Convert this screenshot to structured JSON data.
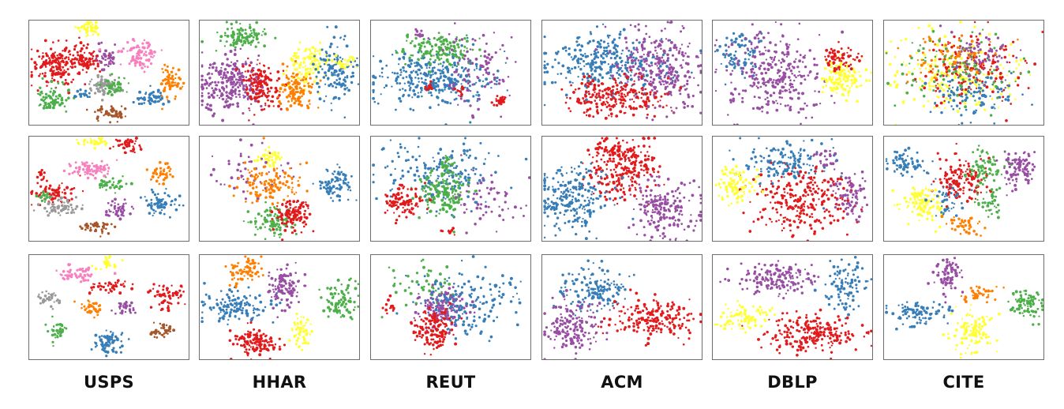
{
  "colors": {
    "red": "#e31a1c",
    "blue": "#377eb8",
    "green": "#4daf4a",
    "purple": "#984ea3",
    "orange": "#ff7f00",
    "yellow": "#ffff33",
    "pink": "#f781bf",
    "gray": "#999999",
    "brown": "#a65628"
  },
  "labels": [
    "USPS",
    "HHAR",
    "REUT",
    "ACM",
    "DBLP",
    "CITE"
  ],
  "chart_data": [
    {
      "type": "scatter",
      "row": 1,
      "dataset": "USPS",
      "clusters": [
        {
          "color": "yellow",
          "cx": 0.37,
          "cy": 0.08,
          "rx": 0.08,
          "ry": 0.07,
          "n": 45
        },
        {
          "color": "red",
          "cx": 0.17,
          "cy": 0.42,
          "rx": 0.15,
          "ry": 0.19,
          "n": 170
        },
        {
          "color": "red",
          "cx": 0.33,
          "cy": 0.36,
          "rx": 0.1,
          "ry": 0.15,
          "n": 80
        },
        {
          "color": "purple",
          "cx": 0.47,
          "cy": 0.36,
          "rx": 0.07,
          "ry": 0.1,
          "n": 45
        },
        {
          "color": "pink",
          "cx": 0.68,
          "cy": 0.33,
          "rx": 0.12,
          "ry": 0.13,
          "n": 90
        },
        {
          "color": "gray",
          "cx": 0.44,
          "cy": 0.61,
          "rx": 0.11,
          "ry": 0.09,
          "n": 70
        },
        {
          "color": "green",
          "cx": 0.14,
          "cy": 0.75,
          "rx": 0.1,
          "ry": 0.12,
          "n": 80
        },
        {
          "color": "green",
          "cx": 0.53,
          "cy": 0.62,
          "rx": 0.1,
          "ry": 0.08,
          "n": 45
        },
        {
          "color": "blue",
          "cx": 0.33,
          "cy": 0.7,
          "rx": 0.05,
          "ry": 0.05,
          "n": 20
        },
        {
          "color": "blue",
          "cx": 0.76,
          "cy": 0.73,
          "rx": 0.1,
          "ry": 0.07,
          "n": 55
        },
        {
          "color": "orange",
          "cx": 0.88,
          "cy": 0.59,
          "rx": 0.07,
          "ry": 0.14,
          "n": 65
        },
        {
          "color": "brown",
          "cx": 0.5,
          "cy": 0.87,
          "rx": 0.09,
          "ry": 0.07,
          "n": 50
        }
      ]
    },
    {
      "type": "scatter",
      "row": 1,
      "dataset": "HHAR",
      "clusters": [
        {
          "color": "green",
          "cx": 0.27,
          "cy": 0.15,
          "rx": 0.16,
          "ry": 0.11,
          "n": 110
        },
        {
          "color": "purple",
          "cx": 0.2,
          "cy": 0.6,
          "rx": 0.2,
          "ry": 0.25,
          "n": 260
        },
        {
          "color": "red",
          "cx": 0.38,
          "cy": 0.6,
          "rx": 0.1,
          "ry": 0.24,
          "n": 150
        },
        {
          "color": "yellow",
          "cx": 0.68,
          "cy": 0.4,
          "rx": 0.12,
          "ry": 0.2,
          "n": 120
        },
        {
          "color": "orange",
          "cx": 0.6,
          "cy": 0.65,
          "rx": 0.11,
          "ry": 0.2,
          "n": 120
        },
        {
          "color": "blue",
          "cx": 0.84,
          "cy": 0.48,
          "rx": 0.12,
          "ry": 0.3,
          "n": 130
        },
        {
          "color": "yellow",
          "cx": 0.9,
          "cy": 0.4,
          "rx": 0.06,
          "ry": 0.08,
          "n": 30
        }
      ]
    },
    {
      "type": "scatter",
      "row": 1,
      "dataset": "REUT",
      "clusters": [
        {
          "color": "blue",
          "cx": 0.4,
          "cy": 0.55,
          "rx": 0.36,
          "ry": 0.25,
          "n": 330
        },
        {
          "color": "green",
          "cx": 0.42,
          "cy": 0.28,
          "rx": 0.22,
          "ry": 0.16,
          "n": 150
        },
        {
          "color": "purple",
          "cx": 0.67,
          "cy": 0.44,
          "rx": 0.22,
          "ry": 0.35,
          "n": 90
        },
        {
          "color": "red",
          "cx": 0.8,
          "cy": 0.76,
          "rx": 0.05,
          "ry": 0.05,
          "n": 28
        },
        {
          "color": "red",
          "cx": 0.37,
          "cy": 0.62,
          "rx": 0.04,
          "ry": 0.05,
          "n": 12
        },
        {
          "color": "red",
          "cx": 0.55,
          "cy": 0.67,
          "rx": 0.04,
          "ry": 0.05,
          "n": 10
        },
        {
          "color": "purple",
          "cx": 0.3,
          "cy": 0.12,
          "rx": 0.05,
          "ry": 0.05,
          "n": 10
        }
      ]
    },
    {
      "type": "scatter",
      "row": 1,
      "dataset": "ACM",
      "clusters": [
        {
          "color": "blue",
          "cx": 0.4,
          "cy": 0.4,
          "rx": 0.35,
          "ry": 0.25,
          "n": 300
        },
        {
          "color": "purple",
          "cx": 0.72,
          "cy": 0.45,
          "rx": 0.28,
          "ry": 0.38,
          "n": 300
        },
        {
          "color": "red",
          "cx": 0.45,
          "cy": 0.72,
          "rx": 0.28,
          "ry": 0.2,
          "n": 240
        }
      ]
    },
    {
      "type": "scatter",
      "row": 1,
      "dataset": "DBLP",
      "clusters": [
        {
          "color": "blue",
          "cx": 0.16,
          "cy": 0.3,
          "rx": 0.13,
          "ry": 0.2,
          "n": 80
        },
        {
          "color": "purple",
          "cx": 0.38,
          "cy": 0.52,
          "rx": 0.3,
          "ry": 0.38,
          "n": 300
        },
        {
          "color": "yellow",
          "cx": 0.8,
          "cy": 0.55,
          "rx": 0.14,
          "ry": 0.17,
          "n": 130
        },
        {
          "color": "red",
          "cx": 0.78,
          "cy": 0.35,
          "rx": 0.1,
          "ry": 0.12,
          "n": 60
        }
      ]
    },
    {
      "type": "scatter",
      "row": 1,
      "dataset": "CITE",
      "clusters": [
        {
          "color": "yellow",
          "cx": 0.45,
          "cy": 0.5,
          "rx": 0.38,
          "ry": 0.35,
          "n": 200
        },
        {
          "color": "red",
          "cx": 0.55,
          "cy": 0.45,
          "rx": 0.3,
          "ry": 0.3,
          "n": 160
        },
        {
          "color": "blue",
          "cx": 0.55,
          "cy": 0.7,
          "rx": 0.3,
          "ry": 0.22,
          "n": 110
        },
        {
          "color": "green",
          "cx": 0.45,
          "cy": 0.45,
          "rx": 0.38,
          "ry": 0.32,
          "n": 110
        },
        {
          "color": "purple",
          "cx": 0.6,
          "cy": 0.3,
          "rx": 0.22,
          "ry": 0.18,
          "n": 70
        },
        {
          "color": "orange",
          "cx": 0.4,
          "cy": 0.35,
          "rx": 0.3,
          "ry": 0.25,
          "n": 70
        }
      ]
    },
    {
      "type": "scatter",
      "row": 2,
      "dataset": "USPS",
      "clusters": [
        {
          "color": "yellow",
          "cx": 0.4,
          "cy": 0.06,
          "rx": 0.09,
          "ry": 0.05,
          "n": 35
        },
        {
          "color": "red",
          "cx": 0.6,
          "cy": 0.08,
          "rx": 0.09,
          "ry": 0.07,
          "n": 40
        },
        {
          "color": "pink",
          "cx": 0.38,
          "cy": 0.3,
          "rx": 0.14,
          "ry": 0.08,
          "n": 75
        },
        {
          "color": "red",
          "cx": 0.15,
          "cy": 0.52,
          "rx": 0.13,
          "ry": 0.1,
          "n": 70
        },
        {
          "color": "red",
          "cx": 0.07,
          "cy": 0.38,
          "rx": 0.04,
          "ry": 0.05,
          "n": 15
        },
        {
          "color": "green",
          "cx": 0.5,
          "cy": 0.45,
          "rx": 0.11,
          "ry": 0.06,
          "n": 45
        },
        {
          "color": "orange",
          "cx": 0.83,
          "cy": 0.33,
          "rx": 0.07,
          "ry": 0.09,
          "n": 40
        },
        {
          "color": "blue",
          "cx": 0.82,
          "cy": 0.63,
          "rx": 0.1,
          "ry": 0.12,
          "n": 70
        },
        {
          "color": "gray",
          "cx": 0.2,
          "cy": 0.66,
          "rx": 0.14,
          "ry": 0.1,
          "n": 70
        },
        {
          "color": "purple",
          "cx": 0.55,
          "cy": 0.68,
          "rx": 0.09,
          "ry": 0.08,
          "n": 45
        },
        {
          "color": "brown",
          "cx": 0.42,
          "cy": 0.87,
          "rx": 0.08,
          "ry": 0.06,
          "n": 40
        },
        {
          "color": "green",
          "cx": 0.1,
          "cy": 0.57,
          "rx": 0.05,
          "ry": 0.05,
          "n": 15
        }
      ]
    },
    {
      "type": "scatter",
      "row": 2,
      "dataset": "HHAR",
      "clusters": [
        {
          "color": "yellow",
          "cx": 0.43,
          "cy": 0.2,
          "rx": 0.08,
          "ry": 0.09,
          "n": 45
        },
        {
          "color": "purple",
          "cx": 0.3,
          "cy": 0.35,
          "rx": 0.25,
          "ry": 0.25,
          "n": 50
        },
        {
          "color": "orange",
          "cx": 0.45,
          "cy": 0.45,
          "rx": 0.18,
          "ry": 0.2,
          "n": 120
        },
        {
          "color": "blue",
          "cx": 0.85,
          "cy": 0.45,
          "rx": 0.1,
          "ry": 0.15,
          "n": 80
        },
        {
          "color": "green",
          "cx": 0.45,
          "cy": 0.8,
          "rx": 0.15,
          "ry": 0.12,
          "n": 90
        },
        {
          "color": "red",
          "cx": 0.58,
          "cy": 0.74,
          "rx": 0.1,
          "ry": 0.15,
          "n": 110
        }
      ]
    },
    {
      "type": "scatter",
      "row": 2,
      "dataset": "REUT",
      "clusters": [
        {
          "color": "blue",
          "cx": 0.45,
          "cy": 0.35,
          "rx": 0.4,
          "ry": 0.3,
          "n": 180
        },
        {
          "color": "green",
          "cx": 0.45,
          "cy": 0.52,
          "rx": 0.15,
          "ry": 0.2,
          "n": 170
        },
        {
          "color": "red",
          "cx": 0.2,
          "cy": 0.63,
          "rx": 0.12,
          "ry": 0.15,
          "n": 100
        },
        {
          "color": "red",
          "cx": 0.48,
          "cy": 0.9,
          "rx": 0.04,
          "ry": 0.04,
          "n": 10
        },
        {
          "color": "purple",
          "cx": 0.7,
          "cy": 0.6,
          "rx": 0.25,
          "ry": 0.25,
          "n": 60
        },
        {
          "color": "green",
          "cx": 0.48,
          "cy": 0.25,
          "rx": 0.05,
          "ry": 0.07,
          "n": 20
        }
      ]
    },
    {
      "type": "scatter",
      "row": 2,
      "dataset": "ACM",
      "clusters": [
        {
          "color": "red",
          "cx": 0.5,
          "cy": 0.3,
          "rx": 0.22,
          "ry": 0.28,
          "n": 250
        },
        {
          "color": "blue",
          "cx": 0.2,
          "cy": 0.58,
          "rx": 0.22,
          "ry": 0.33,
          "n": 240
        },
        {
          "color": "purple",
          "cx": 0.75,
          "cy": 0.68,
          "rx": 0.2,
          "ry": 0.25,
          "n": 200
        },
        {
          "color": "red",
          "cx": 0.42,
          "cy": 0.12,
          "rx": 0.1,
          "ry": 0.05,
          "n": 30
        }
      ]
    },
    {
      "type": "scatter",
      "row": 2,
      "dataset": "DBLP",
      "clusters": [
        {
          "color": "blue",
          "cx": 0.45,
          "cy": 0.25,
          "rx": 0.25,
          "ry": 0.2,
          "n": 150
        },
        {
          "color": "red",
          "cx": 0.55,
          "cy": 0.6,
          "rx": 0.28,
          "ry": 0.3,
          "n": 260
        },
        {
          "color": "yellow",
          "cx": 0.15,
          "cy": 0.45,
          "rx": 0.12,
          "ry": 0.17,
          "n": 90
        },
        {
          "color": "purple",
          "cx": 0.85,
          "cy": 0.55,
          "rx": 0.1,
          "ry": 0.2,
          "n": 80
        },
        {
          "color": "purple",
          "cx": 0.7,
          "cy": 0.2,
          "rx": 0.08,
          "ry": 0.1,
          "n": 25
        }
      ]
    },
    {
      "type": "scatter",
      "row": 2,
      "dataset": "CITE",
      "clusters": [
        {
          "color": "blue",
          "cx": 0.13,
          "cy": 0.25,
          "rx": 0.12,
          "ry": 0.12,
          "n": 70
        },
        {
          "color": "red",
          "cx": 0.48,
          "cy": 0.4,
          "rx": 0.18,
          "ry": 0.2,
          "n": 140
        },
        {
          "color": "green",
          "cx": 0.62,
          "cy": 0.3,
          "rx": 0.12,
          "ry": 0.18,
          "n": 80
        },
        {
          "color": "purple",
          "cx": 0.83,
          "cy": 0.3,
          "rx": 0.12,
          "ry": 0.18,
          "n": 90
        },
        {
          "color": "yellow",
          "cx": 0.25,
          "cy": 0.63,
          "rx": 0.14,
          "ry": 0.18,
          "n": 110
        },
        {
          "color": "orange",
          "cx": 0.48,
          "cy": 0.82,
          "rx": 0.12,
          "ry": 0.08,
          "n": 40
        },
        {
          "color": "blue",
          "cx": 0.4,
          "cy": 0.6,
          "rx": 0.1,
          "ry": 0.15,
          "n": 40
        },
        {
          "color": "green",
          "cx": 0.65,
          "cy": 0.65,
          "rx": 0.1,
          "ry": 0.15,
          "n": 40
        }
      ]
    },
    {
      "type": "scatter",
      "row": 3,
      "dataset": "USPS",
      "clusters": [
        {
          "color": "yellow",
          "cx": 0.48,
          "cy": 0.08,
          "rx": 0.06,
          "ry": 0.06,
          "n": 25
        },
        {
          "color": "pink",
          "cx": 0.3,
          "cy": 0.17,
          "rx": 0.13,
          "ry": 0.08,
          "n": 55
        },
        {
          "color": "red",
          "cx": 0.5,
          "cy": 0.3,
          "rx": 0.12,
          "ry": 0.06,
          "n": 45
        },
        {
          "color": "red",
          "cx": 0.85,
          "cy": 0.38,
          "rx": 0.1,
          "ry": 0.12,
          "n": 60
        },
        {
          "color": "gray",
          "cx": 0.12,
          "cy": 0.42,
          "rx": 0.08,
          "ry": 0.08,
          "n": 35
        },
        {
          "color": "orange",
          "cx": 0.39,
          "cy": 0.5,
          "rx": 0.07,
          "ry": 0.07,
          "n": 35
        },
        {
          "color": "purple",
          "cx": 0.6,
          "cy": 0.5,
          "rx": 0.07,
          "ry": 0.07,
          "n": 35
        },
        {
          "color": "green",
          "cx": 0.18,
          "cy": 0.7,
          "rx": 0.06,
          "ry": 0.1,
          "n": 35
        },
        {
          "color": "blue",
          "cx": 0.49,
          "cy": 0.83,
          "rx": 0.1,
          "ry": 0.12,
          "n": 70
        },
        {
          "color": "brown",
          "cx": 0.83,
          "cy": 0.72,
          "rx": 0.08,
          "ry": 0.08,
          "n": 40
        }
      ]
    },
    {
      "type": "scatter",
      "row": 3,
      "dataset": "HHAR",
      "clusters": [
        {
          "color": "orange",
          "cx": 0.28,
          "cy": 0.15,
          "rx": 0.1,
          "ry": 0.13,
          "n": 70
        },
        {
          "color": "purple",
          "cx": 0.52,
          "cy": 0.3,
          "rx": 0.1,
          "ry": 0.2,
          "n": 110
        },
        {
          "color": "green",
          "cx": 0.88,
          "cy": 0.43,
          "rx": 0.1,
          "ry": 0.18,
          "n": 90
        },
        {
          "color": "blue",
          "cx": 0.22,
          "cy": 0.48,
          "rx": 0.2,
          "ry": 0.15,
          "n": 130
        },
        {
          "color": "red",
          "cx": 0.35,
          "cy": 0.82,
          "rx": 0.15,
          "ry": 0.13,
          "n": 130
        },
        {
          "color": "yellow",
          "cx": 0.63,
          "cy": 0.72,
          "rx": 0.06,
          "ry": 0.13,
          "n": 50
        }
      ]
    },
    {
      "type": "scatter",
      "row": 3,
      "dataset": "REUT",
      "clusters": [
        {
          "color": "green",
          "cx": 0.3,
          "cy": 0.3,
          "rx": 0.22,
          "ry": 0.25,
          "n": 50
        },
        {
          "color": "purple",
          "cx": 0.45,
          "cy": 0.5,
          "rx": 0.15,
          "ry": 0.17,
          "n": 160
        },
        {
          "color": "blue",
          "cx": 0.6,
          "cy": 0.45,
          "rx": 0.35,
          "ry": 0.3,
          "n": 170
        },
        {
          "color": "red",
          "cx": 0.38,
          "cy": 0.72,
          "rx": 0.12,
          "ry": 0.18,
          "n": 140
        },
        {
          "color": "red",
          "cx": 0.1,
          "cy": 0.48,
          "rx": 0.05,
          "ry": 0.08,
          "n": 15
        }
      ]
    },
    {
      "type": "scatter",
      "row": 3,
      "dataset": "ACM",
      "clusters": [
        {
          "color": "blue",
          "cx": 0.33,
          "cy": 0.32,
          "rx": 0.2,
          "ry": 0.2,
          "n": 150
        },
        {
          "color": "purple",
          "cx": 0.2,
          "cy": 0.7,
          "rx": 0.16,
          "ry": 0.27,
          "n": 170
        },
        {
          "color": "red",
          "cx": 0.68,
          "cy": 0.6,
          "rx": 0.25,
          "ry": 0.18,
          "n": 200
        }
      ]
    },
    {
      "type": "scatter",
      "row": 3,
      "dataset": "DBLP",
      "clusters": [
        {
          "color": "purple",
          "cx": 0.4,
          "cy": 0.22,
          "rx": 0.25,
          "ry": 0.15,
          "n": 150
        },
        {
          "color": "blue",
          "cx": 0.82,
          "cy": 0.3,
          "rx": 0.12,
          "ry": 0.25,
          "n": 100
        },
        {
          "color": "yellow",
          "cx": 0.2,
          "cy": 0.58,
          "rx": 0.15,
          "ry": 0.13,
          "n": 90
        },
        {
          "color": "red",
          "cx": 0.62,
          "cy": 0.75,
          "rx": 0.28,
          "ry": 0.17,
          "n": 220
        }
      ]
    },
    {
      "type": "scatter",
      "row": 3,
      "dataset": "CITE",
      "clusters": [
        {
          "color": "purple",
          "cx": 0.4,
          "cy": 0.2,
          "rx": 0.09,
          "ry": 0.15,
          "n": 80
        },
        {
          "color": "orange",
          "cx": 0.58,
          "cy": 0.38,
          "rx": 0.12,
          "ry": 0.07,
          "n": 40
        },
        {
          "color": "blue",
          "cx": 0.22,
          "cy": 0.55,
          "rx": 0.18,
          "ry": 0.1,
          "n": 90
        },
        {
          "color": "green",
          "cx": 0.88,
          "cy": 0.45,
          "rx": 0.11,
          "ry": 0.15,
          "n": 80
        },
        {
          "color": "yellow",
          "cx": 0.55,
          "cy": 0.72,
          "rx": 0.12,
          "ry": 0.18,
          "n": 110
        }
      ]
    }
  ]
}
